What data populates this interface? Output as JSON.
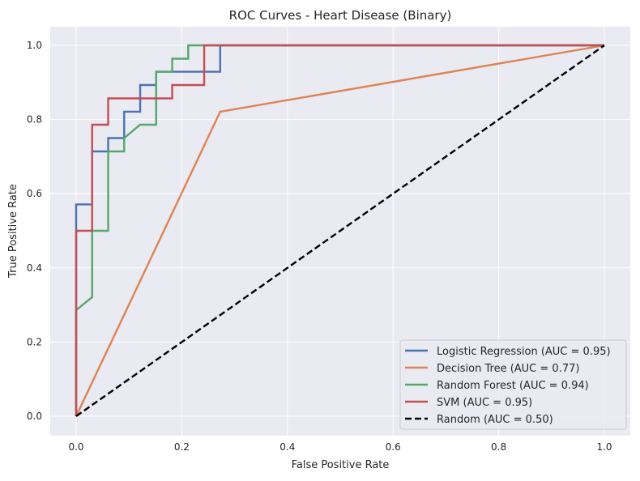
{
  "chart_data": {
    "type": "line",
    "title": "ROC Curves - Heart Disease (Binary)",
    "xlabel": "False Positive Rate",
    "ylabel": "True Positive Rate",
    "xlim": [
      -0.05,
      1.05
    ],
    "ylim": [
      -0.05,
      1.05
    ],
    "xticks": [
      "0.0",
      "0.2",
      "0.4",
      "0.6",
      "0.8",
      "1.0"
    ],
    "yticks": [
      "0.0",
      "0.2",
      "0.4",
      "0.6",
      "0.8",
      "1.0"
    ],
    "grid": true,
    "legend_position": "lower-right",
    "series": [
      {
        "name": "Logistic Regression (AUC = 0.95)",
        "color": "#4c72b0",
        "dash": false,
        "x": [
          0,
          0,
          0.0303,
          0.0303,
          0.0606,
          0.0606,
          0.0909,
          0.0909,
          0.1212,
          0.1212,
          0.1515,
          0.1515,
          0.2727,
          0.2727,
          1
        ],
        "y": [
          0,
          0.571,
          0.571,
          0.714,
          0.714,
          0.75,
          0.75,
          0.821,
          0.821,
          0.893,
          0.893,
          0.929,
          0.929,
          1,
          1
        ]
      },
      {
        "name": "Decision Tree (AUC = 0.77)",
        "color": "#dd8452",
        "dash": false,
        "x": [
          0,
          0.2727,
          1
        ],
        "y": [
          0,
          0.821,
          1
        ]
      },
      {
        "name": "Random Forest (AUC = 0.94)",
        "color": "#55a868",
        "dash": false,
        "x": [
          0,
          0,
          0.0303,
          0.0303,
          0.0606,
          0.0606,
          0.0909,
          0.0909,
          0.1212,
          0.1515,
          0.1515,
          0.1818,
          0.1818,
          0.2121,
          0.2121,
          1
        ],
        "y": [
          0,
          0.286,
          0.321,
          0.5,
          0.5,
          0.714,
          0.714,
          0.75,
          0.786,
          0.786,
          0.929,
          0.929,
          0.964,
          0.964,
          1,
          1
        ]
      },
      {
        "name": "SVM (AUC = 0.95)",
        "color": "#c44e52",
        "dash": false,
        "x": [
          0,
          0,
          0.0303,
          0.0303,
          0.0606,
          0.0606,
          0.1818,
          0.1818,
          0.2424,
          0.2424,
          1
        ],
        "y": [
          0,
          0.5,
          0.5,
          0.786,
          0.786,
          0.857,
          0.857,
          0.893,
          0.893,
          1,
          1
        ]
      },
      {
        "name": "Random (AUC = 0.50)",
        "color": "#000000",
        "dash": true,
        "x": [
          0,
          1
        ],
        "y": [
          0,
          1
        ]
      }
    ]
  }
}
